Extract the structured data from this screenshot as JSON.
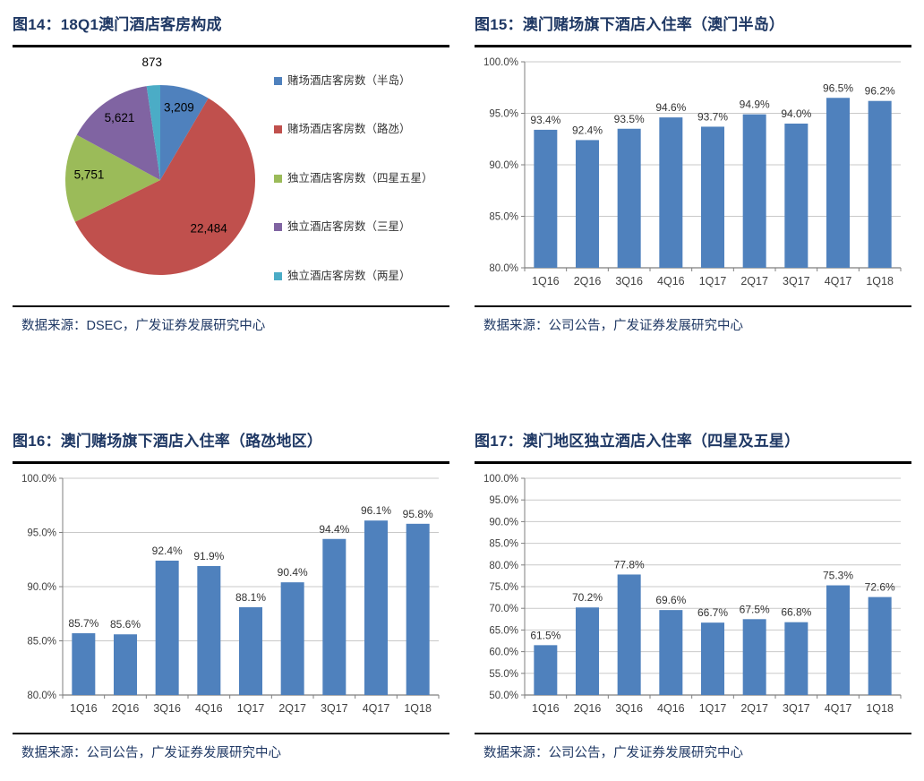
{
  "theme": {
    "title_color": "#1F3864",
    "divider_color": "#000000",
    "grid_color": "#C9C9C9",
    "axis_color": "#7F7F7F",
    "label_color": "#333333",
    "bar_color": "#4F81BD"
  },
  "chart_data": [
    {
      "type": "pie",
      "title": "图14：18Q1澳门酒店客房构成",
      "source": "数据来源：DSEC，广发证券发展研究中心",
      "labels": [
        "赌场酒店客房数（半岛）",
        "赌场酒店客房数（路氹）",
        "独立酒店客房数（四星五星）",
        "独立酒店客房数（三星）",
        "独立酒店客房数（两星）"
      ],
      "values": [
        3209,
        22484,
        5751,
        5621,
        873
      ],
      "value_labels": [
        "3,209",
        "22,484",
        "5,751",
        "5,621",
        "873"
      ],
      "colors": [
        "#4F81BD",
        "#C0504D",
        "#9BBB59",
        "#8064A2",
        "#4BACC6"
      ],
      "legend_position": "right",
      "start_angle": "top-clockwise"
    },
    {
      "type": "bar",
      "title": "图15：澳门赌场旗下酒店入住率（澳门半岛）",
      "source": "数据来源：公司公告，广发证券发展研究中心",
      "categories": [
        "1Q16",
        "2Q16",
        "3Q16",
        "4Q16",
        "1Q17",
        "2Q17",
        "3Q17",
        "4Q17",
        "1Q18"
      ],
      "values": [
        93.4,
        92.4,
        93.5,
        94.6,
        93.7,
        94.9,
        94.0,
        96.5,
        96.2
      ],
      "value_labels": [
        "93.4%",
        "92.4%",
        "93.5%",
        "94.6%",
        "93.7%",
        "94.9%",
        "94.0%",
        "96.5%",
        "96.2%"
      ],
      "bar_color": "#4F81BD",
      "ylim": [
        80,
        100
      ],
      "ytick_step": 5,
      "ytick_labels": [
        "80.0%",
        "85.0%",
        "90.0%",
        "95.0%",
        "100.0%"
      ],
      "grid": true,
      "legend_position": "none"
    },
    {
      "type": "bar",
      "title": "图16：澳门赌场旗下酒店入住率（路氹地区）",
      "source": "数据来源：公司公告，广发证券发展研究中心",
      "categories": [
        "1Q16",
        "2Q16",
        "3Q16",
        "4Q16",
        "1Q17",
        "2Q17",
        "3Q17",
        "4Q17",
        "1Q18"
      ],
      "values": [
        85.7,
        85.6,
        92.4,
        91.9,
        88.1,
        90.4,
        94.4,
        96.1,
        95.8
      ],
      "value_labels": [
        "85.7%",
        "85.6%",
        "92.4%",
        "91.9%",
        "88.1%",
        "90.4%",
        "94.4%",
        "96.1%",
        "95.8%"
      ],
      "bar_color": "#4F81BD",
      "ylim": [
        80,
        100
      ],
      "ytick_step": 5,
      "ytick_labels": [
        "80.0%",
        "85.0%",
        "90.0%",
        "95.0%",
        "100.0%"
      ],
      "grid": true,
      "legend_position": "none"
    },
    {
      "type": "bar",
      "title": "图17：澳门地区独立酒店入住率（四星及五星）",
      "source": "数据来源：公司公告，广发证券发展研究中心",
      "categories": [
        "1Q16",
        "2Q16",
        "3Q16",
        "4Q16",
        "1Q17",
        "2Q17",
        "3Q17",
        "4Q17",
        "1Q18"
      ],
      "values": [
        61.5,
        70.2,
        77.8,
        69.6,
        66.7,
        67.5,
        66.8,
        75.3,
        72.6
      ],
      "value_labels": [
        "61.5%",
        "70.2%",
        "77.8%",
        "69.6%",
        "66.7%",
        "67.5%",
        "66.8%",
        "75.3%",
        "72.6%"
      ],
      "bar_color": "#4F81BD",
      "ylim": [
        50,
        100
      ],
      "ytick_step": 5,
      "ytick_labels": [
        "50.0%",
        "55.0%",
        "60.0%",
        "65.0%",
        "70.0%",
        "75.0%",
        "80.0%",
        "85.0%",
        "90.0%",
        "95.0%",
        "100.0%"
      ],
      "grid": true,
      "legend_position": "none"
    }
  ]
}
